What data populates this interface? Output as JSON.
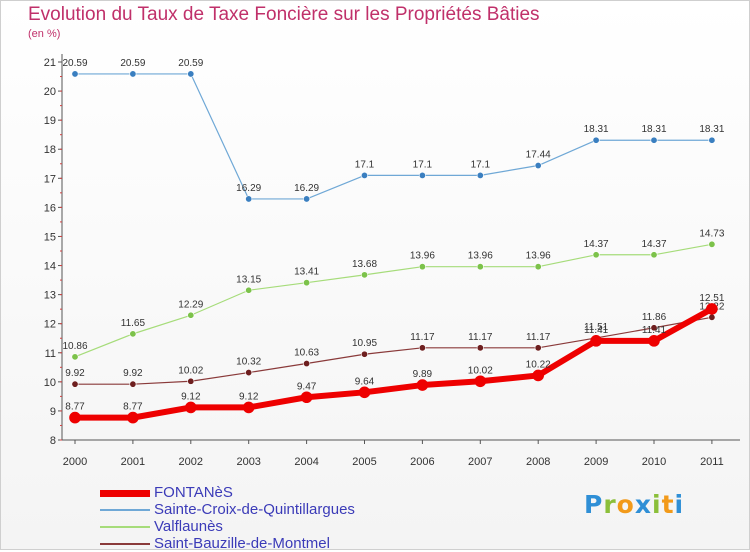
{
  "title": "Evolution du Taux de Taxe Foncière sur les Propriétés Bâties",
  "unit_label": "(en %)",
  "logo": {
    "text": "Proxiti",
    "letters": [
      {
        "ch": "P",
        "color": "#2f8fd6"
      },
      {
        "ch": "r",
        "color": "#8bbf3a"
      },
      {
        "ch": "o",
        "color": "#f29a1a"
      },
      {
        "ch": "x",
        "color": "#2f8fd6"
      },
      {
        "ch": "i",
        "color": "#8bbf3a"
      },
      {
        "ch": "t",
        "color": "#f29a1a"
      },
      {
        "ch": "i",
        "color": "#2f8fd6"
      }
    ]
  },
  "chart_data": {
    "type": "line",
    "title": "Evolution du Taux de Taxe Foncière sur les Propriétés Bâties",
    "ylabel": "(en %)",
    "xlabel": "",
    "x": [
      "2000",
      "2001",
      "2002",
      "2003",
      "2004",
      "2005",
      "2006",
      "2007",
      "2008",
      "2009",
      "2010",
      "2011"
    ],
    "ylim": [
      8,
      21
    ],
    "yticks": [
      8,
      9,
      10,
      11,
      12,
      13,
      14,
      15,
      16,
      17,
      18,
      19,
      20,
      21
    ],
    "grid": false,
    "legend_position": "bottom-left",
    "series": [
      {
        "name": "Sainte-Croix-de-Quintillargues",
        "color": "#6fa8d6",
        "marker": "#3a7fc0",
        "width": 1.2,
        "values": [
          20.59,
          20.59,
          20.59,
          16.29,
          16.29,
          17.1,
          17.1,
          17.1,
          17.44,
          18.31,
          18.31,
          18.31
        ],
        "labels": [
          "20.59",
          "20.59",
          "20.59",
          "16.29",
          "16.29",
          "17.1",
          "17.1",
          "17.1",
          "17.44",
          "18.31",
          "18.31",
          "18.31"
        ]
      },
      {
        "name": "Valflaunès",
        "color": "#a6dc7a",
        "marker": "#7cc24a",
        "width": 1.2,
        "values": [
          10.86,
          11.65,
          12.29,
          13.15,
          13.41,
          13.68,
          13.96,
          13.96,
          13.96,
          14.37,
          14.37,
          14.73
        ],
        "labels": [
          "10.86",
          "11.65",
          "12.29",
          "13.15",
          "13.41",
          "13.68",
          "13.96",
          "13.96",
          "13.96",
          "14.37",
          "14.37",
          "14.73"
        ]
      },
      {
        "name": "Saint-Bauzille-de-Montmel",
        "color": "#8a3a3a",
        "marker": "#6e1f1f",
        "width": 1.2,
        "values": [
          9.92,
          9.92,
          10.02,
          10.32,
          10.63,
          10.95,
          11.17,
          11.17,
          11.17,
          11.51,
          11.86,
          12.22
        ],
        "labels": [
          "9.92",
          "9.92",
          "10.02",
          "10.32",
          "10.63",
          "10.95",
          "11.17",
          "11.17",
          "11.17",
          "11.51",
          "11.86",
          "12.22"
        ]
      },
      {
        "name": "FONTANèS",
        "color": "#ee0000",
        "marker": "#ee0000",
        "width": 6,
        "values": [
          8.77,
          8.77,
          9.12,
          9.12,
          9.47,
          9.64,
          9.89,
          10.02,
          10.22,
          11.41,
          11.41,
          12.51
        ],
        "labels": [
          "8.77",
          "8.77",
          "9.12",
          "9.12",
          "9.47",
          "9.64",
          "9.89",
          "10.02",
          "10.22",
          "11.41",
          "11.41",
          "12.51"
        ]
      }
    ],
    "legend": [
      {
        "name": "FONTANèS",
        "color": "#ee0000",
        "width": 7
      },
      {
        "name": "Sainte-Croix-de-Quintillargues",
        "color": "#6fa8d6",
        "width": 2
      },
      {
        "name": "Valflaunès",
        "color": "#a6dc7a",
        "width": 2
      },
      {
        "name": "Saint-Bauzille-de-Montmel",
        "color": "#8a3a3a",
        "width": 2
      }
    ]
  }
}
